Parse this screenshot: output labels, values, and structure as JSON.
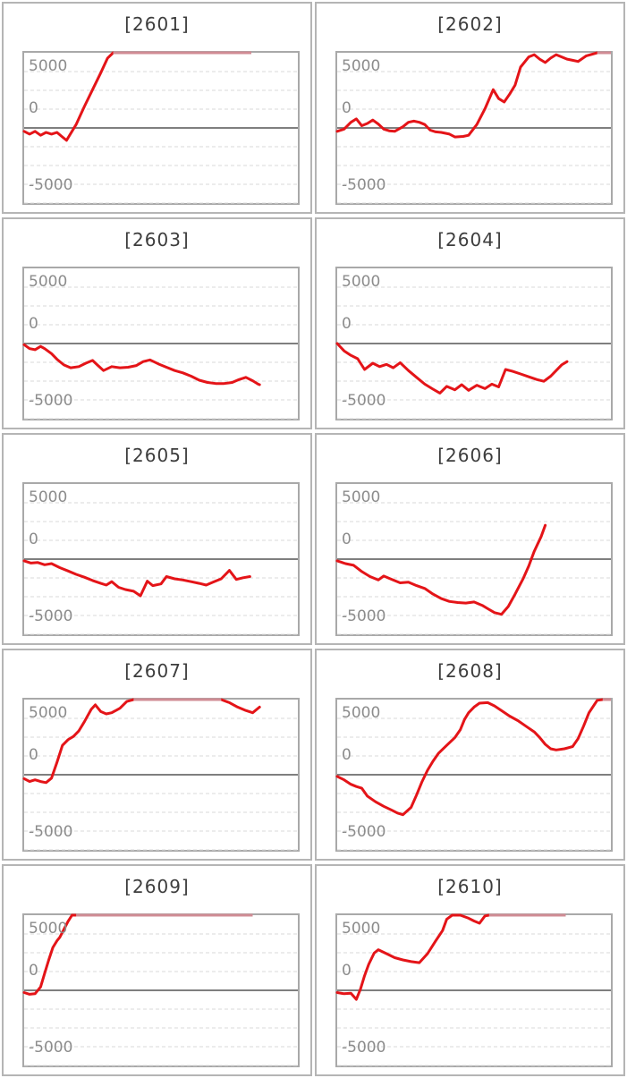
{
  "axis": {
    "ticks": [
      "5000",
      "0",
      "-5000"
    ]
  },
  "colors": {
    "line": "#e41418",
    "line_capped": "#d08c94",
    "grid": "#d9d9d9",
    "zero_line": "#7f7f7f",
    "plot_border": "#a9a9a9",
    "tile_border": "#b5b5b5",
    "tick_label": "#8c8c8c",
    "title_text": "#3d3d3d"
  },
  "chart_data": [
    {
      "type": "line",
      "label": "[2601]",
      "ylabel": "",
      "xlabel": "",
      "y_ticks": [
        5000,
        0,
        -5000
      ],
      "ylim": [
        -6700,
        6700
      ],
      "cap_value": 7000,
      "grid": "dashed-horizontal",
      "points": [
        [
          0,
          -300
        ],
        [
          0.02,
          -550
        ],
        [
          0.04,
          -300
        ],
        [
          0.06,
          -650
        ],
        [
          0.08,
          -400
        ],
        [
          0.1,
          -550
        ],
        [
          0.12,
          -400
        ],
        [
          0.14,
          -800
        ],
        [
          0.155,
          -1100
        ],
        [
          0.19,
          300
        ],
        [
          0.22,
          1900
        ],
        [
          0.25,
          3400
        ],
        [
          0.28,
          4900
        ],
        [
          0.305,
          6200
        ],
        [
          0.325,
          7000
        ],
        [
          0.83,
          7000
        ]
      ]
    },
    {
      "type": "line",
      "label": "[2602]",
      "ylabel": "",
      "xlabel": "",
      "y_ticks": [
        5000,
        0,
        -5000
      ],
      "ylim": [
        -6700,
        6700
      ],
      "cap_value": 7000,
      "grid": "dashed-horizontal",
      "points": [
        [
          0,
          -300
        ],
        [
          0.025,
          -100
        ],
        [
          0.05,
          500
        ],
        [
          0.07,
          800
        ],
        [
          0.09,
          200
        ],
        [
          0.11,
          400
        ],
        [
          0.13,
          700
        ],
        [
          0.15,
          350
        ],
        [
          0.17,
          -100
        ],
        [
          0.19,
          -250
        ],
        [
          0.21,
          -300
        ],
        [
          0.24,
          100
        ],
        [
          0.26,
          500
        ],
        [
          0.28,
          600
        ],
        [
          0.3,
          500
        ],
        [
          0.32,
          300
        ],
        [
          0.34,
          -200
        ],
        [
          0.36,
          -350
        ],
        [
          0.38,
          -400
        ],
        [
          0.41,
          -550
        ],
        [
          0.43,
          -800
        ],
        [
          0.46,
          -750
        ],
        [
          0.48,
          -650
        ],
        [
          0.51,
          300
        ],
        [
          0.54,
          1700
        ],
        [
          0.57,
          3400
        ],
        [
          0.59,
          2600
        ],
        [
          0.61,
          2300
        ],
        [
          0.63,
          3000
        ],
        [
          0.65,
          3800
        ],
        [
          0.67,
          5400
        ],
        [
          0.7,
          6300
        ],
        [
          0.72,
          6500
        ],
        [
          0.74,
          6100
        ],
        [
          0.76,
          5800
        ],
        [
          0.78,
          6200
        ],
        [
          0.8,
          6500
        ],
        [
          0.82,
          6300
        ],
        [
          0.84,
          6100
        ],
        [
          0.86,
          6000
        ],
        [
          0.88,
          5900
        ],
        [
          0.91,
          6400
        ],
        [
          0.95,
          7000
        ],
        [
          1.0,
          7000
        ]
      ]
    },
    {
      "type": "line",
      "label": "[2603]",
      "ylabel": "",
      "xlabel": "",
      "y_ticks": [
        5000,
        0,
        -5000
      ],
      "ylim": [
        -6700,
        6700
      ],
      "cap_value": 7000,
      "grid": "dashed-horizontal",
      "points": [
        [
          0,
          -100
        ],
        [
          0.02,
          -450
        ],
        [
          0.04,
          -550
        ],
        [
          0.06,
          -250
        ],
        [
          0.075,
          -450
        ],
        [
          0.1,
          -900
        ],
        [
          0.12,
          -1400
        ],
        [
          0.145,
          -1900
        ],
        [
          0.17,
          -2150
        ],
        [
          0.2,
          -2050
        ],
        [
          0.225,
          -1750
        ],
        [
          0.25,
          -1500
        ],
        [
          0.27,
          -1950
        ],
        [
          0.29,
          -2400
        ],
        [
          0.32,
          -2050
        ],
        [
          0.35,
          -2150
        ],
        [
          0.38,
          -2100
        ],
        [
          0.41,
          -1950
        ],
        [
          0.435,
          -1600
        ],
        [
          0.46,
          -1450
        ],
        [
          0.49,
          -1800
        ],
        [
          0.52,
          -2100
        ],
        [
          0.55,
          -2400
        ],
        [
          0.58,
          -2600
        ],
        [
          0.61,
          -2900
        ],
        [
          0.64,
          -3250
        ],
        [
          0.67,
          -3450
        ],
        [
          0.7,
          -3550
        ],
        [
          0.73,
          -3550
        ],
        [
          0.76,
          -3450
        ],
        [
          0.785,
          -3200
        ],
        [
          0.81,
          -3000
        ],
        [
          0.835,
          -3300
        ],
        [
          0.855,
          -3600
        ],
        [
          0.86,
          -3650
        ]
      ]
    },
    {
      "type": "line",
      "label": "[2604]",
      "ylabel": "",
      "xlabel": "",
      "y_ticks": [
        5000,
        0,
        -5000
      ],
      "ylim": [
        -6700,
        6700
      ],
      "cap_value": 7000,
      "grid": "dashed-horizontal",
      "points": [
        [
          0,
          0
        ],
        [
          0.025,
          -650
        ],
        [
          0.05,
          -1050
        ],
        [
          0.075,
          -1350
        ],
        [
          0.1,
          -2300
        ],
        [
          0.13,
          -1750
        ],
        [
          0.155,
          -2050
        ],
        [
          0.18,
          -1850
        ],
        [
          0.205,
          -2150
        ],
        [
          0.23,
          -1700
        ],
        [
          0.26,
          -2400
        ],
        [
          0.29,
          -3000
        ],
        [
          0.32,
          -3600
        ],
        [
          0.35,
          -4050
        ],
        [
          0.375,
          -4400
        ],
        [
          0.4,
          -3800
        ],
        [
          0.43,
          -4100
        ],
        [
          0.455,
          -3650
        ],
        [
          0.48,
          -4150
        ],
        [
          0.51,
          -3700
        ],
        [
          0.54,
          -4000
        ],
        [
          0.565,
          -3600
        ],
        [
          0.59,
          -3850
        ],
        [
          0.615,
          -2300
        ],
        [
          0.64,
          -2450
        ],
        [
          0.67,
          -2700
        ],
        [
          0.7,
          -2950
        ],
        [
          0.73,
          -3200
        ],
        [
          0.755,
          -3350
        ],
        [
          0.78,
          -2900
        ],
        [
          0.8,
          -2400
        ],
        [
          0.82,
          -1900
        ],
        [
          0.84,
          -1600
        ]
      ]
    },
    {
      "type": "line",
      "label": "[2605]",
      "ylabel": "",
      "xlabel": "",
      "y_ticks": [
        5000,
        0,
        -5000
      ],
      "ylim": [
        -6700,
        6700
      ],
      "cap_value": 7000,
      "grid": "dashed-horizontal",
      "points": [
        [
          0,
          -150
        ],
        [
          0.025,
          -350
        ],
        [
          0.05,
          -300
        ],
        [
          0.075,
          -500
        ],
        [
          0.1,
          -400
        ],
        [
          0.13,
          -750
        ],
        [
          0.16,
          -1050
        ],
        [
          0.19,
          -1350
        ],
        [
          0.22,
          -1600
        ],
        [
          0.25,
          -1900
        ],
        [
          0.28,
          -2150
        ],
        [
          0.3,
          -2300
        ],
        [
          0.32,
          -2000
        ],
        [
          0.345,
          -2500
        ],
        [
          0.37,
          -2700
        ],
        [
          0.4,
          -2850
        ],
        [
          0.425,
          -3250
        ],
        [
          0.45,
          -1950
        ],
        [
          0.47,
          -2350
        ],
        [
          0.5,
          -2200
        ],
        [
          0.52,
          -1550
        ],
        [
          0.55,
          -1750
        ],
        [
          0.58,
          -1850
        ],
        [
          0.61,
          -2000
        ],
        [
          0.64,
          -2150
        ],
        [
          0.665,
          -2300
        ],
        [
          0.69,
          -2050
        ],
        [
          0.72,
          -1750
        ],
        [
          0.75,
          -1000
        ],
        [
          0.775,
          -1800
        ],
        [
          0.8,
          -1650
        ],
        [
          0.825,
          -1550
        ]
      ]
    },
    {
      "type": "line",
      "label": "[2606]",
      "ylabel": "",
      "xlabel": "",
      "y_ticks": [
        5000,
        0,
        -5000
      ],
      "ylim": [
        -6700,
        6700
      ],
      "cap_value": 7000,
      "grid": "dashed-horizontal",
      "points": [
        [
          0,
          -150
        ],
        [
          0.03,
          -400
        ],
        [
          0.06,
          -550
        ],
        [
          0.09,
          -1100
        ],
        [
          0.12,
          -1550
        ],
        [
          0.15,
          -1850
        ],
        [
          0.17,
          -1500
        ],
        [
          0.2,
          -1800
        ],
        [
          0.23,
          -2100
        ],
        [
          0.26,
          -2050
        ],
        [
          0.29,
          -2350
        ],
        [
          0.32,
          -2600
        ],
        [
          0.35,
          -3100
        ],
        [
          0.38,
          -3500
        ],
        [
          0.41,
          -3750
        ],
        [
          0.44,
          -3850
        ],
        [
          0.47,
          -3900
        ],
        [
          0.5,
          -3800
        ],
        [
          0.53,
          -4100
        ],
        [
          0.55,
          -4400
        ],
        [
          0.575,
          -4750
        ],
        [
          0.6,
          -4900
        ],
        [
          0.625,
          -4200
        ],
        [
          0.65,
          -3100
        ],
        [
          0.68,
          -1700
        ],
        [
          0.7,
          -600
        ],
        [
          0.72,
          700
        ],
        [
          0.745,
          2000
        ],
        [
          0.76,
          3000
        ]
      ]
    },
    {
      "type": "line",
      "label": "[2607]",
      "ylabel": "",
      "xlabel": "",
      "y_ticks": [
        5000,
        0,
        -5000
      ],
      "ylim": [
        -6700,
        6700
      ],
      "cap_value": 7000,
      "grid": "dashed-horizontal",
      "points": [
        [
          0,
          -350
        ],
        [
          0.02,
          -600
        ],
        [
          0.04,
          -450
        ],
        [
          0.06,
          -600
        ],
        [
          0.08,
          -700
        ],
        [
          0.1,
          -300
        ],
        [
          0.12,
          1100
        ],
        [
          0.14,
          2600
        ],
        [
          0.16,
          3100
        ],
        [
          0.18,
          3400
        ],
        [
          0.2,
          3900
        ],
        [
          0.22,
          4700
        ],
        [
          0.245,
          5800
        ],
        [
          0.26,
          6200
        ],
        [
          0.28,
          5600
        ],
        [
          0.3,
          5400
        ],
        [
          0.32,
          5500
        ],
        [
          0.35,
          5900
        ],
        [
          0.375,
          6500
        ],
        [
          0.4,
          7000
        ],
        [
          0.72,
          7000
        ],
        [
          0.75,
          6400
        ],
        [
          0.78,
          6000
        ],
        [
          0.81,
          5700
        ],
        [
          0.835,
          5500
        ],
        [
          0.86,
          6000
        ]
      ]
    },
    {
      "type": "line",
      "label": "[2608]",
      "ylabel": "",
      "xlabel": "",
      "y_ticks": [
        5000,
        0,
        -5000
      ],
      "ylim": [
        -6700,
        6700
      ],
      "cap_value": 7000,
      "grid": "dashed-horizontal",
      "points": [
        [
          0,
          -150
        ],
        [
          0.025,
          -450
        ],
        [
          0.05,
          -850
        ],
        [
          0.07,
          -1050
        ],
        [
          0.09,
          -1200
        ],
        [
          0.11,
          -1900
        ],
        [
          0.14,
          -2400
        ],
        [
          0.17,
          -2800
        ],
        [
          0.2,
          -3150
        ],
        [
          0.22,
          -3400
        ],
        [
          0.24,
          -3550
        ],
        [
          0.27,
          -2900
        ],
        [
          0.29,
          -1800
        ],
        [
          0.31,
          -600
        ],
        [
          0.33,
          400
        ],
        [
          0.35,
          1200
        ],
        [
          0.37,
          1900
        ],
        [
          0.4,
          2600
        ],
        [
          0.43,
          3300
        ],
        [
          0.45,
          4000
        ],
        [
          0.465,
          4900
        ],
        [
          0.48,
          5500
        ],
        [
          0.5,
          6000
        ],
        [
          0.52,
          6350
        ],
        [
          0.55,
          6400
        ],
        [
          0.575,
          6100
        ],
        [
          0.6,
          5700
        ],
        [
          0.63,
          5200
        ],
        [
          0.66,
          4800
        ],
        [
          0.69,
          4300
        ],
        [
          0.72,
          3800
        ],
        [
          0.74,
          3300
        ],
        [
          0.76,
          2700
        ],
        [
          0.78,
          2300
        ],
        [
          0.8,
          2200
        ],
        [
          0.83,
          2300
        ],
        [
          0.86,
          2500
        ],
        [
          0.88,
          3200
        ],
        [
          0.9,
          4300
        ],
        [
          0.92,
          5500
        ],
        [
          0.95,
          6600
        ],
        [
          0.97,
          7000
        ],
        [
          1.0,
          7100
        ]
      ]
    },
    {
      "type": "line",
      "label": "[2609]",
      "ylabel": "",
      "xlabel": "",
      "y_ticks": [
        5000,
        0,
        -5000
      ],
      "ylim": [
        -6700,
        6700
      ],
      "cap_value": 7000,
      "grid": "dashed-horizontal",
      "points": [
        [
          0,
          -200
        ],
        [
          0.02,
          -350
        ],
        [
          0.04,
          -300
        ],
        [
          0.06,
          300
        ],
        [
          0.075,
          1500
        ],
        [
          0.09,
          2700
        ],
        [
          0.105,
          3800
        ],
        [
          0.12,
          4400
        ],
        [
          0.13,
          4700
        ],
        [
          0.145,
          5400
        ],
        [
          0.16,
          6100
        ],
        [
          0.175,
          6700
        ],
        [
          0.19,
          7000
        ],
        [
          0.835,
          7000
        ]
      ]
    },
    {
      "type": "line",
      "label": "[2610]",
      "ylabel": "",
      "xlabel": "",
      "y_ticks": [
        5000,
        0,
        -5000
      ],
      "ylim": [
        -6700,
        6700
      ],
      "cap_value": 7000,
      "grid": "dashed-horizontal",
      "points": [
        [
          0,
          -200
        ],
        [
          0.025,
          -300
        ],
        [
          0.05,
          -250
        ],
        [
          0.07,
          -800
        ],
        [
          0.085,
          100
        ],
        [
          0.1,
          1300
        ],
        [
          0.115,
          2300
        ],
        [
          0.135,
          3300
        ],
        [
          0.15,
          3600
        ],
        [
          0.18,
          3250
        ],
        [
          0.21,
          2900
        ],
        [
          0.24,
          2700
        ],
        [
          0.27,
          2550
        ],
        [
          0.3,
          2450
        ],
        [
          0.33,
          3250
        ],
        [
          0.36,
          4400
        ],
        [
          0.385,
          5300
        ],
        [
          0.4,
          6300
        ],
        [
          0.42,
          6750
        ],
        [
          0.45,
          6700
        ],
        [
          0.48,
          6400
        ],
        [
          0.5,
          6150
        ],
        [
          0.52,
          5950
        ],
        [
          0.54,
          6600
        ],
        [
          0.555,
          7000
        ],
        [
          0.835,
          7000
        ]
      ]
    }
  ]
}
